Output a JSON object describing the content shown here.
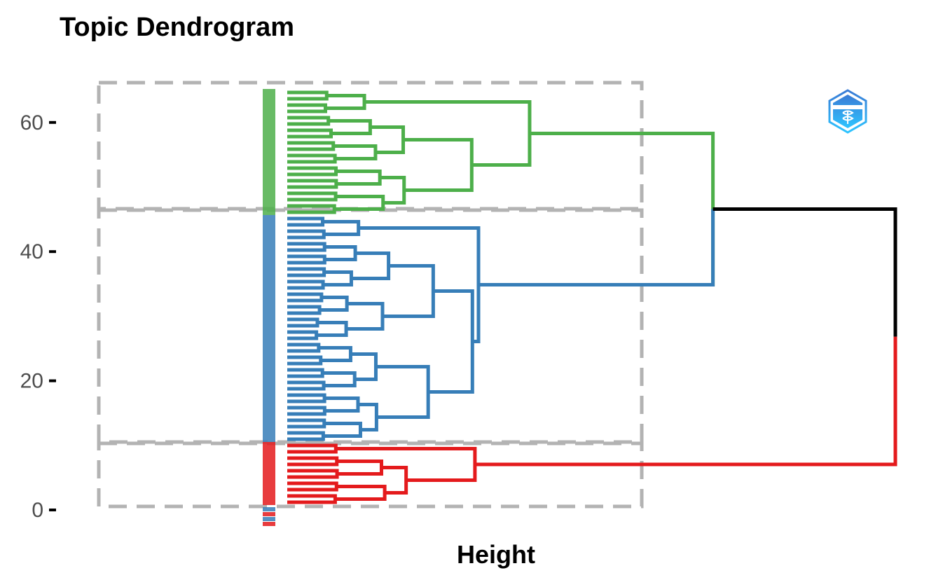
{
  "chart_data": {
    "type": "dendrogram",
    "title": "Topic Dendrogram",
    "xlabel": "Height",
    "ylabel": "",
    "ylim": [
      0,
      66
    ],
    "yticks": [
      0,
      20,
      40,
      60
    ],
    "ytick_labels": [
      "0",
      "20",
      "40",
      "60"
    ],
    "grid": false,
    "leaf_count": 66,
    "clusters": [
      {
        "color": "#E41A1C",
        "leaf_range": [
          0,
          9
        ],
        "leaves": 10,
        "merge_height_rel": 0.39
      },
      {
        "color": "#377EB8",
        "leaf_range": [
          10,
          45
        ],
        "leaves": 36,
        "merge_height_rel": 0.41
      },
      {
        "color": "#4DAF4A",
        "leaf_range": [
          46,
          65
        ],
        "leaves": 20,
        "merge_height_rel": 0.46
      }
    ],
    "root": {
      "color": "#000000",
      "height_rel": 1.0
    },
    "colors": {
      "red": "#E41A1C",
      "blue": "#377EB8",
      "green": "#4DAF4A",
      "box": "#b3b3b3",
      "root": "#000000"
    }
  },
  "logo": {
    "name": "bibliometrix-logo",
    "text": "BIBLIOMETRIX"
  }
}
